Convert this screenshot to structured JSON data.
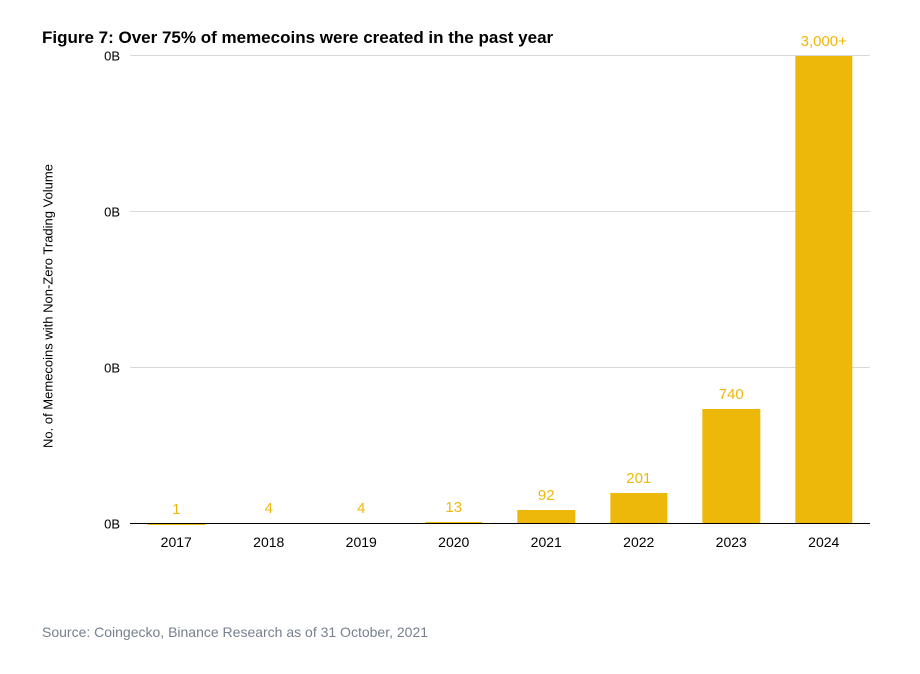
{
  "title": {
    "text": "Figure 7: Over 75% of memecoins were created in the past year",
    "fontsize": 17,
    "fontweight": "700",
    "color": "#000000"
  },
  "source": {
    "text": "Source: Coingecko, Binance Research as of 31 October, 2021",
    "fontsize": 14,
    "color": "#76808f"
  },
  "chart": {
    "type": "bar",
    "ylabel": "No. of Memecoins with Non-Zero Trading Volume",
    "ylabel_fontsize": 13,
    "ylabel_color": "#000000",
    "categories": [
      "2017",
      "2018",
      "2019",
      "2020",
      "2021",
      "2022",
      "2023",
      "2024"
    ],
    "values": [
      1,
      4,
      4,
      13,
      92,
      201,
      740,
      3000
    ],
    "bar_labels": [
      "1",
      "4",
      "4",
      "13",
      "92",
      "201",
      "740",
      "3,000+"
    ],
    "bar_color": "#eeb80b",
    "bar_label_color": "#eeb80b",
    "bar_label_fontsize": 15,
    "bar_width_ratio": 0.62,
    "ylim": [
      0,
      3000
    ],
    "ytick_count": 4,
    "ytick_label": "0B",
    "ytick_fontsize": 13,
    "ytick_color": "#000000",
    "xtick_fontsize": 14,
    "xtick_color": "#000000",
    "grid_color": "#d9d9d9",
    "axis_color": "#000000",
    "background_color": "#ffffff"
  }
}
